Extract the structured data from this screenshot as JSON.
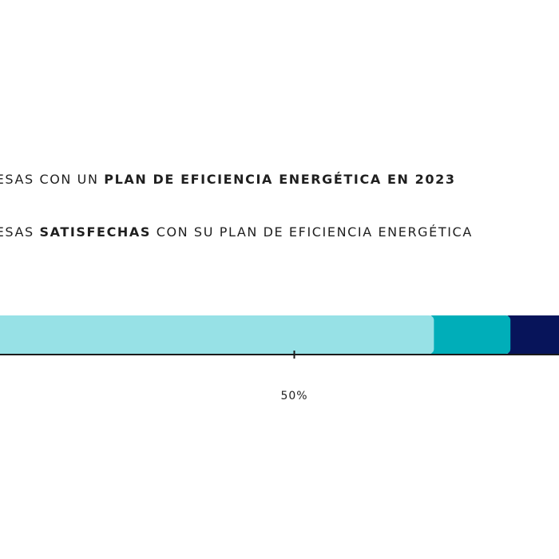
{
  "chart_data": {
    "type": "bar",
    "orientation": "horizontal",
    "stacked": true,
    "legend": [
      {
        "prefix": "RESAS CON UN ",
        "bold": "PLAN DE EFICIENCIA ENERGÉTICA EN 2023",
        "suffix": ""
      },
      {
        "prefix": "RESAS ",
        "bold": "SATISFECHAS",
        "suffix": " CON SU PLAN DE EFICIENCIA ENERGÉTICA"
      }
    ],
    "segments": [
      {
        "value": 74,
        "color": "#97e1e6"
      },
      {
        "value": 13,
        "color": "#00aeb9"
      },
      {
        "value": 13,
        "color": "#07145a"
      }
    ],
    "xlim": [
      0,
      100
    ],
    "ticks": [
      {
        "value": 50,
        "label": "50%"
      }
    ]
  }
}
